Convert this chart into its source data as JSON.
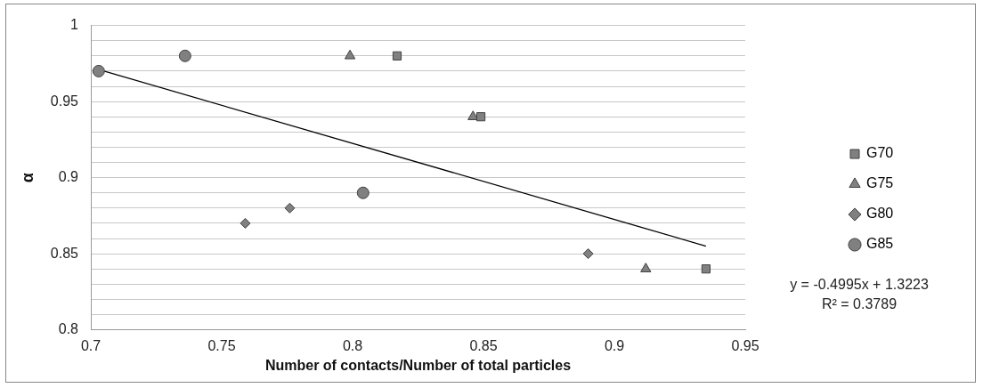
{
  "chart_data": {
    "type": "scatter",
    "xlabel": "Number of contacts/Number of total particles",
    "ylabel": "α",
    "xlim": [
      0.7,
      0.95
    ],
    "xticks": [
      0.7,
      0.75,
      0.8,
      0.85,
      0.9,
      0.95
    ],
    "ylim": [
      0.8,
      1
    ],
    "yticks": [
      0.8,
      {
        "value": 0.81,
        "label": null
      },
      {
        "value": 0.82,
        "label": null
      },
      {
        "value": 0.83,
        "label": null
      },
      {
        "value": 0.84,
        "label": null
      },
      0.85,
      {
        "value": 0.86,
        "label": null
      },
      {
        "value": 0.87,
        "label": null
      },
      {
        "value": 0.88,
        "label": null
      },
      {
        "value": 0.89,
        "label": null
      },
      0.9,
      {
        "value": 0.91,
        "label": null
      },
      {
        "value": 0.92,
        "label": null
      },
      {
        "value": 0.93,
        "label": null
      },
      {
        "value": 0.94,
        "label": null
      },
      0.95,
      {
        "value": 0.96,
        "label": null
      },
      {
        "value": 0.97,
        "label": null
      },
      {
        "value": 0.98,
        "label": null
      },
      {
        "value": 0.99,
        "label": null
      },
      1
    ],
    "grid": "y",
    "legend": "right",
    "series": [
      {
        "name": "G70",
        "color": "#808080",
        "marker": "square",
        "x": [
          0.817,
          0.849,
          0.935
        ],
        "values": [
          0.98,
          0.94,
          0.84
        ]
      },
      {
        "name": "G75",
        "color": "#808080",
        "marker": "triangle",
        "x": [
          0.799,
          0.846,
          0.912
        ],
        "values": [
          0.98,
          0.94,
          0.84
        ]
      },
      {
        "name": "G80",
        "color": "#808080",
        "marker": "diamond",
        "x": [
          0.759,
          0.776,
          0.89
        ],
        "values": [
          0.87,
          0.88,
          0.85
        ]
      },
      {
        "name": "G85",
        "color": "#808080",
        "marker": "circle",
        "x": [
          0.703,
          0.736,
          0.804
        ],
        "values": [
          0.97,
          0.98,
          0.89
        ]
      },
      {
        "type": "line",
        "color": "#000000",
        "marker": "none",
        "x": [
          0.703,
          0.935
        ],
        "values": [
          0.971,
          0.855
        ]
      }
    ],
    "annotations": [
      "y = -0.4995x + 1.3223",
      "R² = 0.3789"
    ]
  }
}
